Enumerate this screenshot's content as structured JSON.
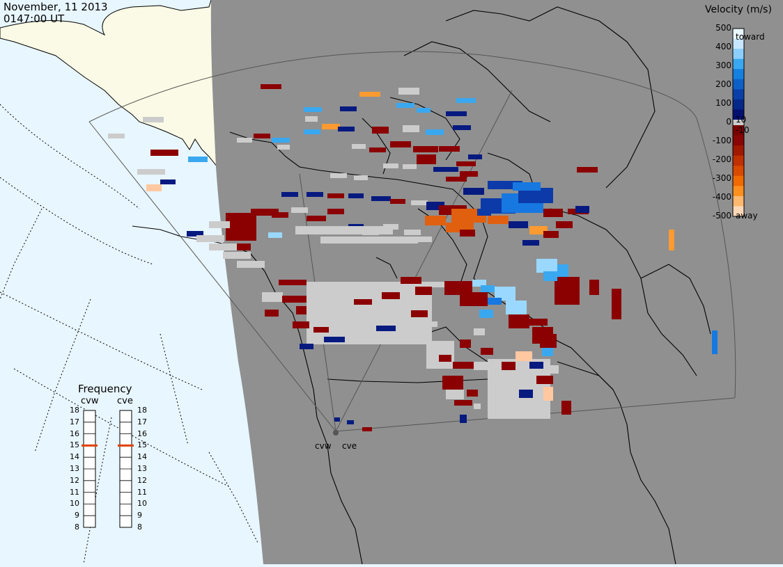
{
  "title": {
    "date": "November, 11 2013",
    "time": "0147:00 UT"
  },
  "colorbar": {
    "title": "Velocity (m/s)",
    "ticks_positive": [
      "500",
      "400",
      "300",
      "200",
      "100"
    ],
    "ticks_zero": "0",
    "ticks_negative": [
      "-100",
      "-200",
      "-300",
      "-400",
      "-500"
    ],
    "small_pos": "10",
    "small_neg": "-10",
    "toward_label": "toward",
    "away_label": "away",
    "colors_toward": [
      "#e8f6ff",
      "#c8e8ff",
      "#8ccfff",
      "#3aa8f0",
      "#1580e0",
      "#0e60c8",
      "#0a3fa8",
      "#062888",
      "#031070"
    ],
    "colors_away": [
      "#7a0000",
      "#8a0505",
      "#a01800",
      "#c03000",
      "#d84a00",
      "#f06a00",
      "#ff9020",
      "#ffb870",
      "#ffd8b8"
    ],
    "gray_color": "#cccccc"
  },
  "radars": {
    "west_label": "cvw",
    "east_label": "cve"
  },
  "frequency": {
    "title": "Frequency",
    "west_label": "cvw",
    "east_label": "cve",
    "ticks": [
      "18",
      "17",
      "16",
      "15",
      "14",
      "13",
      "12",
      "11",
      "10",
      "9",
      "8"
    ],
    "west_value": 15,
    "east_value": 15,
    "marker_color": "#e04000"
  },
  "map": {
    "ocean_color": "#e8f6ff",
    "land_color": "#fafae6",
    "night_color": "#909090"
  }
}
